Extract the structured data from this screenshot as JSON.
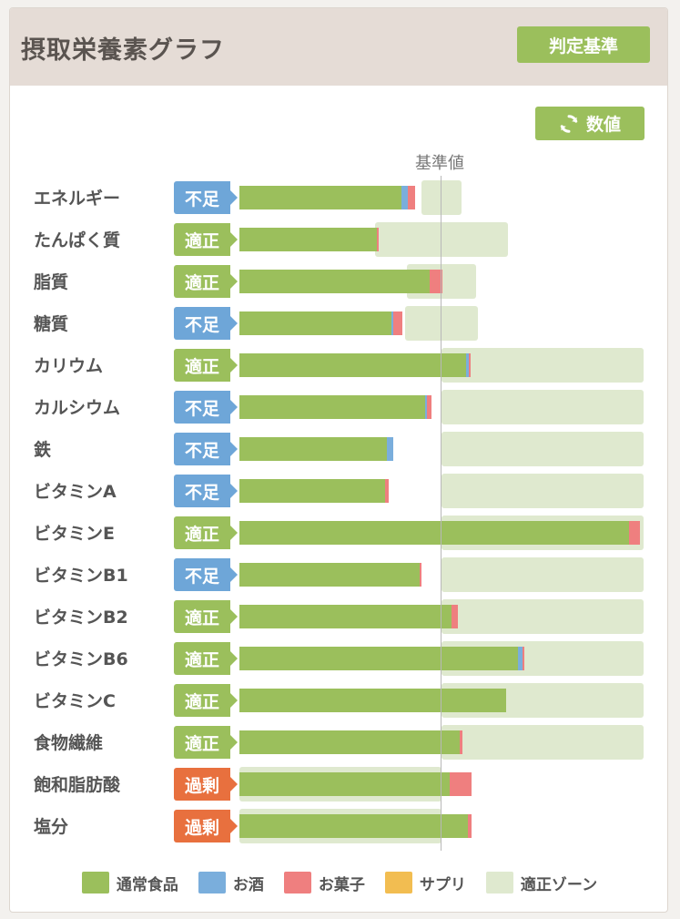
{
  "header": {
    "title": "摂取栄養素グラフ",
    "criteria_button": "判定基準"
  },
  "toolbar": {
    "values_button": "数値",
    "reference_label": "基準値"
  },
  "colors": {
    "regular_food": "#9bbf5c",
    "alcohol": "#7aaedc",
    "snacks": "#ef7f7f",
    "supplements": "#f2bd51",
    "proper_zone": "#dfe9cf",
    "status_deficient": "#6ea6d8",
    "status_proper": "#9bbf5c",
    "status_excess": "#e8703e"
  },
  "legend": [
    {
      "label": "通常食品",
      "color": "#9bbf5c"
    },
    {
      "label": "お酒",
      "color": "#7aaedc"
    },
    {
      "label": "お菓子",
      "color": "#ef7f7f"
    },
    {
      "label": "サプリ",
      "color": "#f2bd51"
    },
    {
      "label": "適正ゾーン",
      "color": "#dfe9cf"
    }
  ],
  "chart_data": {
    "type": "bar",
    "orientation": "horizontal",
    "stacked": true,
    "reference": 100,
    "unit": "% of reference value",
    "categories": [
      "エネルギー",
      "たんぱく質",
      "脂質",
      "糖質",
      "カリウム",
      "カルシウム",
      "鉄",
      "ビタミンA",
      "ビタミンE",
      "ビタミンB1",
      "ビタミンB2",
      "ビタミンB6",
      "ビタミンC",
      "食物繊維",
      "飽和脂肪酸",
      "塩分"
    ],
    "status": [
      "不足",
      "適正",
      "適正",
      "不足",
      "適正",
      "不足",
      "不足",
      "不足",
      "適正",
      "不足",
      "適正",
      "適正",
      "適正",
      "適正",
      "過剰",
      "過剰"
    ],
    "series": [
      {
        "name": "通常食品",
        "values": [
          80,
          68,
          94,
          75,
          112,
          92,
          73,
          72,
          193,
          89,
          105,
          138,
          132,
          109,
          104,
          113
        ]
      },
      {
        "name": "お酒",
        "values": [
          3.5,
          0,
          0,
          1,
          1.5,
          1,
          3,
          0,
          0,
          0,
          0,
          2,
          0,
          0,
          0,
          0
        ]
      },
      {
        "name": "お菓子",
        "values": [
          3.5,
          1,
          6.5,
          4.5,
          1,
          2,
          0,
          2,
          5,
          1,
          3,
          1,
          0,
          1.5,
          11,
          2
        ]
      },
      {
        "name": "サプリ",
        "values": [
          0,
          0,
          0,
          0,
          0,
          0,
          0,
          0,
          0,
          0,
          0,
          0,
          0,
          0,
          0,
          0
        ]
      }
    ],
    "proper_zone": [
      [
        90,
        110
      ],
      [
        67,
        133
      ],
      [
        83,
        117
      ],
      [
        82,
        118
      ],
      [
        100,
        200
      ],
      [
        100,
        200
      ],
      [
        100,
        200
      ],
      [
        100,
        200
      ],
      [
        100,
        200
      ],
      [
        100,
        200
      ],
      [
        100,
        200
      ],
      [
        100,
        200
      ],
      [
        100,
        200
      ],
      [
        100,
        200
      ],
      [
        0,
        100
      ],
      [
        0,
        100
      ]
    ],
    "xlim": [
      0,
      200
    ]
  }
}
